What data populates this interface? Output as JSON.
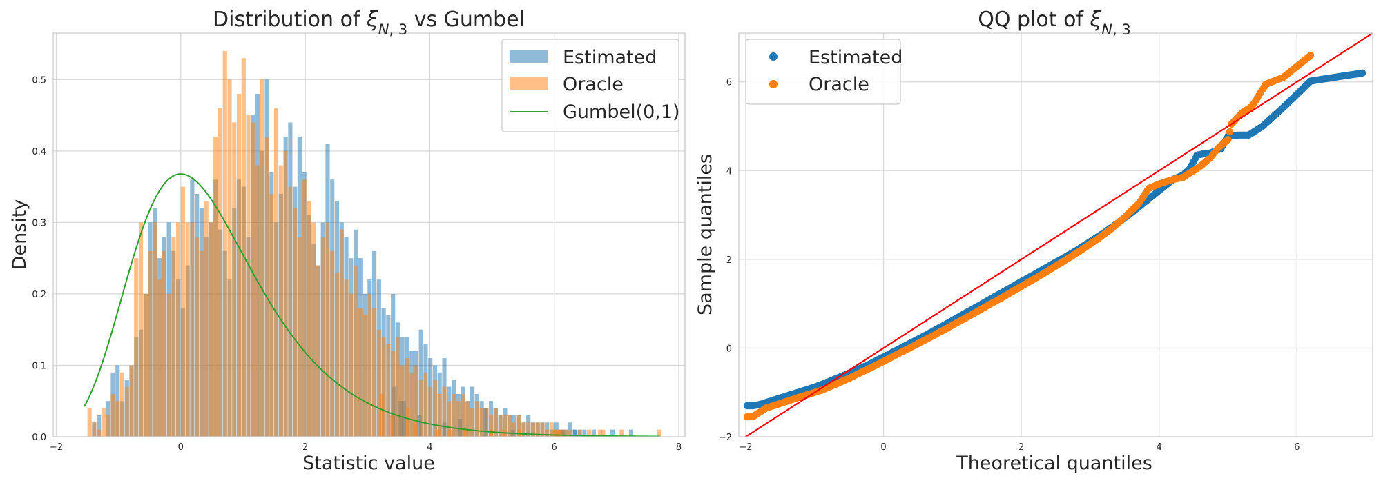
{
  "chart_data": [
    {
      "type": "histogram",
      "title_html": "Distribution of <tspan font-style='italic'>ξ</tspan><tspan baseline-shift='sub' font-size='21'><tspan font-style='italic'>N</tspan>, 3</tspan> vs Gumbel",
      "title": "Distribution of ξN,3 vs Gumbel",
      "xlabel": "Statistic value",
      "ylabel": "Density",
      "xlim": [
        -2.05,
        8.1
      ],
      "ylim": [
        0,
        0.565
      ],
      "xticks": [
        -2,
        0,
        2,
        4,
        6,
        8
      ],
      "yticks": [
        0.0,
        0.1,
        0.2,
        0.3,
        0.4,
        0.5
      ],
      "ytick_labels": [
        "0.0",
        "0.1",
        "0.2",
        "0.3",
        "0.4",
        "0.5"
      ],
      "grid": true,
      "legend_position": "top-right",
      "legend": [
        {
          "label": "Estimated",
          "kind": "patch",
          "color": "#1f77b4"
        },
        {
          "label": "Oracle",
          "kind": "patch",
          "color": "#ff7f0e"
        },
        {
          "label": "Gumbel(0,1)",
          "kind": "line",
          "color": "#2ca02c"
        }
      ],
      "series": [
        {
          "name": "Estimated",
          "color": "#1f77b4",
          "opacity": 0.5,
          "bin_start": -1.5,
          "bin_width": 0.075,
          "values": [
            0.0,
            0.02,
            0.03,
            0.0,
            0.05,
            0.09,
            0.1,
            0.05,
            0.08,
            0.1,
            0.14,
            0.15,
            0.2,
            0.3,
            0.32,
            0.25,
            0.28,
            0.3,
            0.26,
            0.22,
            0.18,
            0.24,
            0.36,
            0.34,
            0.32,
            0.28,
            0.3,
            0.36,
            0.29,
            0.26,
            0.22,
            0.32,
            0.36,
            0.35,
            0.28,
            0.45,
            0.48,
            0.4,
            0.5,
            0.37,
            0.3,
            0.34,
            0.42,
            0.44,
            0.35,
            0.42,
            0.37,
            0.31,
            0.27,
            0.24,
            0.3,
            0.41,
            0.36,
            0.33,
            0.3,
            0.28,
            0.25,
            0.29,
            0.25,
            0.2,
            0.22,
            0.26,
            0.22,
            0.18,
            0.17,
            0.2,
            0.16,
            0.14,
            0.14,
            0.12,
            0.12,
            0.15,
            0.13,
            0.11,
            0.1,
            0.09,
            0.11,
            0.07,
            0.08,
            0.06,
            0.07,
            0.05,
            0.07,
            0.06,
            0.05,
            0.04,
            0.05,
            0.04,
            0.03,
            0.04,
            0.03,
            0.03,
            0.03,
            0.02,
            0.03,
            0.02,
            0.02,
            0.02,
            0.02,
            0.01,
            0.02,
            0.01,
            0.01,
            0.02,
            0.01,
            0.01,
            0.01,
            0.0,
            0.01,
            0.0,
            0.0,
            0.0,
            0.01,
            0.0,
            0.0,
            0.0,
            0.01,
            0.0,
            0.0,
            0.0,
            0.0,
            0.0,
            0.0,
            0.0,
            0.0,
            0.0,
            0.0,
            0.0,
            0.0,
            0.0,
            0.0,
            0.0,
            0.0,
            0.0,
            0.0,
            0.0,
            0.0,
            0.0,
            0.0,
            0.0,
            0.0,
            0.0,
            0.0,
            0.0,
            0.0,
            0.0,
            0.0,
            0.0,
            0.0,
            0.0,
            0.0,
            0.0
          ],
          "extra_bars": [
            [
              3.4,
              0.07
            ],
            [
              3.5,
              0.05
            ],
            [
              3.55,
              0.05
            ],
            [
              3.8,
              0.03
            ],
            [
              4.2,
              0.02
            ],
            [
              4.45,
              0.025
            ],
            [
              4.85,
              0.04
            ],
            [
              5.3,
              0.01
            ],
            [
              6.1,
              0.01
            ],
            [
              6.3,
              0.01
            ]
          ]
        },
        {
          "name": "Oracle",
          "color": "#ff7f0e",
          "opacity": 0.5,
          "bin_start": -1.5,
          "bin_width": 0.075,
          "values": [
            0.04,
            0.02,
            0.01,
            0.04,
            0.03,
            0.06,
            0.05,
            0.09,
            0.07,
            0.1,
            0.25,
            0.3,
            0.2,
            0.26,
            0.3,
            0.22,
            0.26,
            0.2,
            0.28,
            0.3,
            0.35,
            0.3,
            0.3,
            0.28,
            0.26,
            0.33,
            0.3,
            0.42,
            0.46,
            0.54,
            0.5,
            0.44,
            0.48,
            0.53,
            0.45,
            0.44,
            0.38,
            0.5,
            0.42,
            0.34,
            0.46,
            0.38,
            0.4,
            0.35,
            0.32,
            0.28,
            0.36,
            0.33,
            0.3,
            0.24,
            0.28,
            0.3,
            0.26,
            0.23,
            0.29,
            0.22,
            0.2,
            0.24,
            0.18,
            0.17,
            0.2,
            0.18,
            0.15,
            0.14,
            0.13,
            0.12,
            0.14,
            0.1,
            0.11,
            0.09,
            0.1,
            0.08,
            0.09,
            0.07,
            0.08,
            0.06,
            0.07,
            0.05,
            0.06,
            0.05,
            0.06,
            0.05,
            0.04,
            0.05,
            0.04,
            0.04,
            0.03,
            0.04,
            0.03,
            0.03,
            0.03,
            0.02,
            0.03,
            0.02,
            0.02,
            0.02,
            0.02,
            0.02,
            0.01,
            0.02,
            0.01,
            0.01,
            0.01,
            0.01,
            0.0,
            0.01,
            0.0,
            0.01,
            0.0,
            0.0,
            0.01,
            0.0,
            0.0,
            0.0,
            0.01,
            0.0,
            0.0,
            0.0,
            0.0,
            0.0,
            0.0,
            0.0,
            0.0,
            0.0,
            0.0,
            0.0,
            0.0,
            0.0,
            0.0,
            0.0,
            0.0,
            0.0,
            0.0,
            0.0,
            0.0,
            0.0,
            0.0,
            0.0,
            0.0,
            0.0,
            0.0,
            0.0,
            0.0,
            0.0,
            0.0,
            0.0,
            0.0,
            0.0,
            0.0,
            0.0
          ],
          "extra_bars": [
            [
              3.2,
              0.06
            ],
            [
              3.35,
              0.03
            ],
            [
              3.6,
              0.04
            ],
            [
              3.75,
              0.02
            ],
            [
              4.1,
              0.01
            ],
            [
              4.3,
              0.01
            ],
            [
              4.55,
              0.01
            ],
            [
              4.95,
              0.01
            ],
            [
              5.15,
              0.01
            ],
            [
              5.4,
              0.01
            ],
            [
              6.0,
              0.01
            ],
            [
              6.05,
              0.01
            ],
            [
              6.7,
              0.01
            ],
            [
              7.65,
              0.01
            ]
          ]
        },
        {
          "name": "Gumbel(0,1)",
          "kind": "line",
          "color": "#2ca02c",
          "function": "gumbel_pdf",
          "x_range": [
            -1.55,
            7.7
          ]
        }
      ]
    },
    {
      "type": "scatter",
      "title_html": "QQ plot of <tspan font-style='italic'>ξ</tspan><tspan baseline-shift='sub' font-size='21'><tspan font-style='italic'>N</tspan>, 3</tspan>",
      "title": "QQ plot of ξN,3",
      "xlabel": "Theoretical quantiles",
      "ylabel": "Sample quantiles",
      "xlim": [
        -2.1,
        7.1
      ],
      "ylim": [
        -2.0,
        7.1
      ],
      "xticks": [
        -2,
        0,
        2,
        4,
        6
      ],
      "yticks": [
        -2,
        0,
        2,
        4,
        6
      ],
      "grid": true,
      "legend_position": "top-left",
      "legend": [
        {
          "label": "Estimated",
          "kind": "marker",
          "color": "#1f77b4"
        },
        {
          "label": "Oracle",
          "kind": "marker",
          "color": "#ff7f0e"
        }
      ],
      "reference_line": {
        "color": "#ff0000",
        "slope": 1,
        "intercept": 0
      },
      "series": [
        {
          "name": "Estimated",
          "color": "#1f77b4",
          "points": [
            [
              -1.98,
              -1.3
            ],
            [
              -1.9,
              -1.3
            ],
            [
              -1.82,
              -1.28
            ],
            [
              -1.75,
              -1.25
            ],
            [
              -1.65,
              -1.2
            ],
            [
              -1.55,
              -1.15
            ],
            [
              -1.45,
              -1.1
            ],
            [
              -1.35,
              -1.05
            ],
            [
              -1.2,
              -0.98
            ],
            [
              -1.0,
              -0.88
            ],
            [
              -0.8,
              -0.76
            ],
            [
              -0.6,
              -0.63
            ],
            [
              -0.4,
              -0.5
            ],
            [
              -0.2,
              -0.36
            ],
            [
              0.0,
              -0.2
            ],
            [
              0.2,
              -0.04
            ],
            [
              0.4,
              0.12
            ],
            [
              0.6,
              0.28
            ],
            [
              0.8,
              0.45
            ],
            [
              1.0,
              0.62
            ],
            [
              1.2,
              0.8
            ],
            [
              1.4,
              0.97
            ],
            [
              1.6,
              1.15
            ],
            [
              1.8,
              1.32
            ],
            [
              2.0,
              1.5
            ],
            [
              2.2,
              1.67
            ],
            [
              2.4,
              1.85
            ],
            [
              2.6,
              2.02
            ],
            [
              2.8,
              2.2
            ],
            [
              3.0,
              2.4
            ],
            [
              3.2,
              2.6
            ],
            [
              3.4,
              2.82
            ],
            [
              3.6,
              3.05
            ],
            [
              3.8,
              3.3
            ],
            [
              4.0,
              3.55
            ],
            [
              4.2,
              3.8
            ],
            [
              4.35,
              3.9
            ],
            [
              4.45,
              4.05
            ],
            [
              4.55,
              4.35
            ],
            [
              4.65,
              4.38
            ],
            [
              4.75,
              4.4
            ],
            [
              4.9,
              4.5
            ],
            [
              5.0,
              4.78
            ],
            [
              5.15,
              4.8
            ],
            [
              5.3,
              4.8
            ],
            [
              5.5,
              5.0
            ],
            [
              5.8,
              5.42
            ],
            [
              6.2,
              6.02
            ],
            [
              6.95,
              6.2
            ]
          ]
        },
        {
          "name": "Oracle",
          "color": "#ff7f0e",
          "points": [
            [
              -1.98,
              -1.55
            ],
            [
              -1.9,
              -1.55
            ],
            [
              -1.8,
              -1.45
            ],
            [
              -1.7,
              -1.35
            ],
            [
              -1.6,
              -1.3
            ],
            [
              -1.5,
              -1.25
            ],
            [
              -1.4,
              -1.2
            ],
            [
              -1.25,
              -1.12
            ],
            [
              -1.1,
              -1.05
            ],
            [
              -0.9,
              -0.95
            ],
            [
              -0.7,
              -0.82
            ],
            [
              -0.5,
              -0.68
            ],
            [
              -0.3,
              -0.53
            ],
            [
              -0.1,
              -0.38
            ],
            [
              0.1,
              -0.22
            ],
            [
              0.3,
              -0.06
            ],
            [
              0.5,
              0.1
            ],
            [
              0.7,
              0.26
            ],
            [
              0.9,
              0.43
            ],
            [
              1.1,
              0.6
            ],
            [
              1.3,
              0.77
            ],
            [
              1.5,
              0.95
            ],
            [
              1.7,
              1.12
            ],
            [
              1.9,
              1.3
            ],
            [
              2.1,
              1.48
            ],
            [
              2.3,
              1.66
            ],
            [
              2.5,
              1.85
            ],
            [
              2.7,
              2.04
            ],
            [
              2.9,
              2.24
            ],
            [
              3.1,
              2.45
            ],
            [
              3.3,
              2.68
            ],
            [
              3.5,
              2.95
            ],
            [
              3.7,
              3.25
            ],
            [
              3.85,
              3.6
            ],
            [
              4.0,
              3.7
            ],
            [
              4.2,
              3.8
            ],
            [
              4.35,
              3.85
            ],
            [
              4.5,
              4.0
            ],
            [
              4.6,
              4.1
            ],
            [
              4.75,
              4.3
            ],
            [
              4.85,
              4.5
            ],
            [
              5.0,
              4.7
            ],
            [
              5.05,
              5.05
            ],
            [
              5.2,
              5.3
            ],
            [
              5.35,
              5.45
            ],
            [
              5.55,
              5.95
            ],
            [
              5.8,
              6.1
            ],
            [
              6.2,
              6.6
            ]
          ]
        }
      ]
    }
  ]
}
